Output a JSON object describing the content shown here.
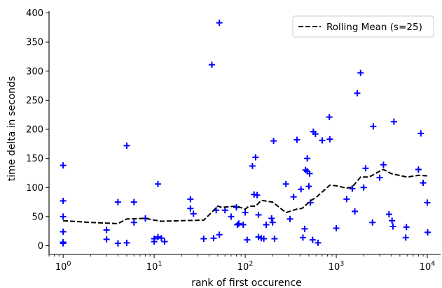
{
  "chart_data": {
    "type": "scatter",
    "title": "",
    "xlabel": "rank of first occurence",
    "ylabel": "time delta in seconds",
    "xscale": "log",
    "xlim": [
      0.7,
      14000
    ],
    "ylim": [
      -15,
      403
    ],
    "x_ticks": [
      1,
      10,
      100,
      1000,
      10000
    ],
    "x_tick_labels": [
      {
        "base": "10",
        "exp": "0"
      },
      {
        "base": "10",
        "exp": "1"
      },
      {
        "base": "10",
        "exp": "2"
      },
      {
        "base": "10",
        "exp": "3"
      },
      {
        "base": "10",
        "exp": "4"
      }
    ],
    "y_ticks": [
      0,
      50,
      100,
      150,
      200,
      250,
      300,
      350,
      400
    ],
    "y_tick_labels": [
      "0",
      "50",
      "100",
      "150",
      "200",
      "250",
      "300",
      "350",
      "400"
    ],
    "grid": false,
    "legend": {
      "position": "top-right",
      "entries": [
        "Rolling Mean (s=25)"
      ]
    },
    "colors": {
      "scatter": "#0000ff",
      "rolling": "#000000"
    },
    "scatter": {
      "marker": "plus",
      "points": [
        [
          1,
          138
        ],
        [
          1,
          77
        ],
        [
          1,
          50
        ],
        [
          1,
          24
        ],
        [
          1,
          6
        ],
        [
          1,
          4
        ],
        [
          3,
          27
        ],
        [
          3,
          11
        ],
        [
          4,
          75
        ],
        [
          4,
          4
        ],
        [
          5,
          172
        ],
        [
          5,
          5
        ],
        [
          6,
          75
        ],
        [
          6,
          40
        ],
        [
          8,
          47
        ],
        [
          10,
          12
        ],
        [
          10,
          7
        ],
        [
          11,
          106
        ],
        [
          11,
          15
        ],
        [
          12,
          13
        ],
        [
          13,
          7
        ],
        [
          25,
          80
        ],
        [
          25,
          64
        ],
        [
          27,
          55
        ],
        [
          35,
          12
        ],
        [
          43,
          311
        ],
        [
          45,
          13
        ],
        [
          48,
          61
        ],
        [
          52,
          383
        ],
        [
          52,
          19
        ],
        [
          60,
          61
        ],
        [
          70,
          50
        ],
        [
          80,
          66
        ],
        [
          82,
          36
        ],
        [
          85,
          38
        ],
        [
          95,
          36
        ],
        [
          100,
          57
        ],
        [
          105,
          10
        ],
        [
          120,
          137
        ],
        [
          125,
          88
        ],
        [
          130,
          152
        ],
        [
          135,
          87
        ],
        [
          140,
          53
        ],
        [
          140,
          15
        ],
        [
          150,
          13
        ],
        [
          160,
          12
        ],
        [
          170,
          36
        ],
        [
          195,
          47
        ],
        [
          200,
          40
        ],
        [
          205,
          180
        ],
        [
          210,
          12
        ],
        [
          280,
          106
        ],
        [
          310,
          46
        ],
        [
          340,
          84
        ],
        [
          370,
          182
        ],
        [
          410,
          97
        ],
        [
          430,
          14
        ],
        [
          450,
          29
        ],
        [
          460,
          130
        ],
        [
          480,
          128
        ],
        [
          480,
          150
        ],
        [
          500,
          102
        ],
        [
          510,
          124
        ],
        [
          520,
          74
        ],
        [
          550,
          10
        ],
        [
          560,
          196
        ],
        [
          590,
          192
        ],
        [
          630,
          5
        ],
        [
          700,
          181
        ],
        [
          840,
          221
        ],
        [
          850,
          183
        ],
        [
          1000,
          30
        ],
        [
          1300,
          80
        ],
        [
          1500,
          98
        ],
        [
          1600,
          59
        ],
        [
          1700,
          262
        ],
        [
          1850,
          297
        ],
        [
          2000,
          100
        ],
        [
          2100,
          133
        ],
        [
          2500,
          40
        ],
        [
          2550,
          205
        ],
        [
          3000,
          117
        ],
        [
          3300,
          139
        ],
        [
          3800,
          54
        ],
        [
          4100,
          43
        ],
        [
          4200,
          33
        ],
        [
          4300,
          213
        ],
        [
          5800,
          14
        ],
        [
          5900,
          32
        ],
        [
          8000,
          131
        ],
        [
          8500,
          193
        ],
        [
          9000,
          108
        ],
        [
          10000,
          74
        ],
        [
          10100,
          23
        ]
      ]
    },
    "series": [
      {
        "name": "Rolling Mean (s=25)",
        "x": [
          1,
          2,
          4,
          5,
          8,
          10,
          12,
          20,
          35,
          42,
          50,
          55,
          80,
          100,
          110,
          130,
          150,
          200,
          280,
          370,
          420,
          530,
          600,
          850,
          1000,
          1300,
          1500,
          1850,
          2300,
          3000,
          3300,
          4000,
          6000,
          8000,
          10000
        ],
        "y": [
          43,
          40,
          38,
          46,
          47,
          44,
          42,
          43,
          44,
          56,
          68,
          66,
          68,
          63,
          68,
          68,
          78,
          75,
          57,
          63,
          64,
          78,
          83,
          104,
          103,
          99,
          101,
          118,
          118,
          128,
          131,
          124,
          118,
          121,
          120
        ]
      }
    ]
  }
}
